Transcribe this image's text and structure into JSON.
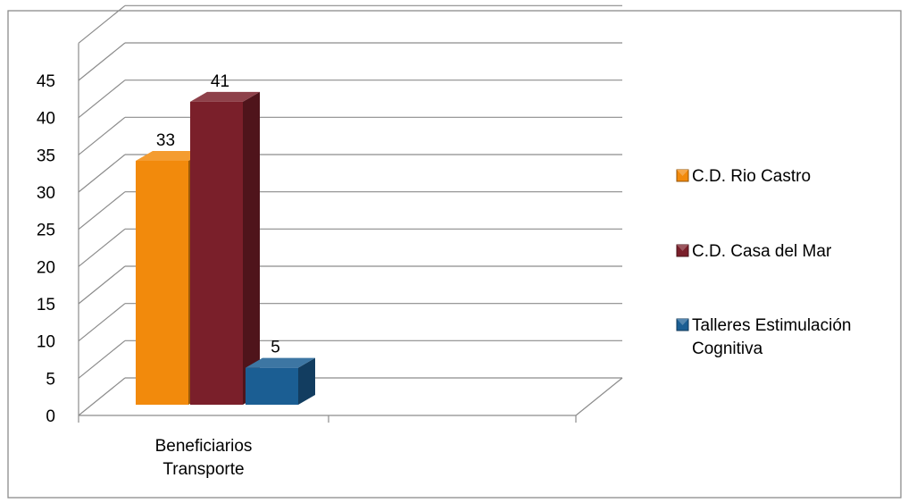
{
  "chart_data": {
    "type": "bar",
    "categories": [
      "Beneficiarios Transporte"
    ],
    "category_lines": [
      "Beneficiarios",
      "Transporte"
    ],
    "series": [
      {
        "name": "C.D. Rio Castro",
        "values": [
          33
        ],
        "color": "#f28a0c"
      },
      {
        "name": "C.D. Casa del Mar",
        "values": [
          41
        ],
        "color": "#7a1f2a"
      },
      {
        "name": "Talleres Estimulación Cognitiva",
        "values": [
          5
        ],
        "color": "#1b5e93"
      }
    ],
    "legend_lines": [
      [
        "C.D. Rio Castro"
      ],
      [
        "C.D. Casa del Mar"
      ],
      [
        "Talleres Estimulación",
        "Cognitiva"
      ]
    ],
    "y_ticks": [
      "0",
      "5",
      "10",
      "15",
      "20",
      "25",
      "30",
      "35",
      "40",
      "45"
    ],
    "ylim": [
      0,
      45
    ],
    "grid": true,
    "legend_position": "right",
    "three_d": true
  }
}
